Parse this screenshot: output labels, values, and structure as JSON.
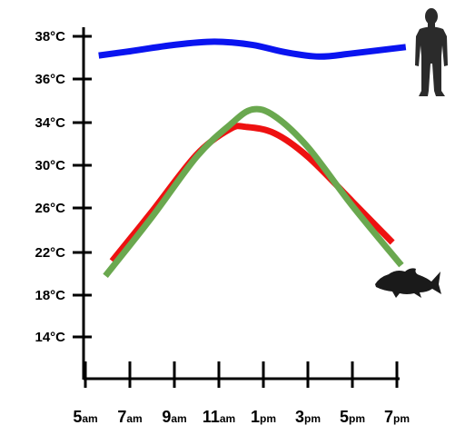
{
  "chart_data": {
    "type": "line",
    "title": "",
    "xlabel": "",
    "ylabel": "",
    "y_tick_labels": [
      "14°C",
      "18°C",
      "22°C",
      "26°C",
      "30°C",
      "34°C",
      "36°C",
      "38°C"
    ],
    "x_tick_labels": [
      {
        "num": "5",
        "suffix": "am"
      },
      {
        "num": "7",
        "suffix": "am"
      },
      {
        "num": "9",
        "suffix": "am"
      },
      {
        "num": "11",
        "suffix": "am"
      },
      {
        "num": "1",
        "suffix": "pm"
      },
      {
        "num": "3",
        "suffix": "pm"
      },
      {
        "num": "5",
        "suffix": "pm"
      },
      {
        "num": "7",
        "suffix": "pm"
      }
    ],
    "x_hours": [
      5,
      7,
      9,
      11,
      13,
      15,
      17,
      19
    ],
    "series": [
      {
        "color": "#0a14f0",
        "x": [
          5.6,
          7,
          9,
          10.8,
          12.5,
          14,
          15.5,
          17,
          19.4
        ],
        "y": [
          37.1,
          37.3,
          37.6,
          37.75,
          37.6,
          37.25,
          37.05,
          37.2,
          37.5
        ]
      },
      {
        "color": "#ee1111",
        "x": [
          6.2,
          8,
          10,
          11.5,
          12.2,
          13.5,
          15,
          17,
          18.8
        ],
        "y": [
          21.2,
          25.7,
          31.0,
          33.4,
          33.6,
          33.0,
          30.8,
          26.6,
          22.9
        ]
      },
      {
        "color": "#6aa84f",
        "x": [
          5.9,
          8,
          10,
          11.5,
          12.5,
          13.5,
          15,
          17,
          19.2
        ],
        "y": [
          19.8,
          25.2,
          30.8,
          33.8,
          34.6,
          34.3,
          31.7,
          26.2,
          20.8
        ]
      }
    ],
    "icons": [
      "person-silhouette-icon",
      "fish-silhouette-icon"
    ],
    "grid": false,
    "legend": "none"
  }
}
